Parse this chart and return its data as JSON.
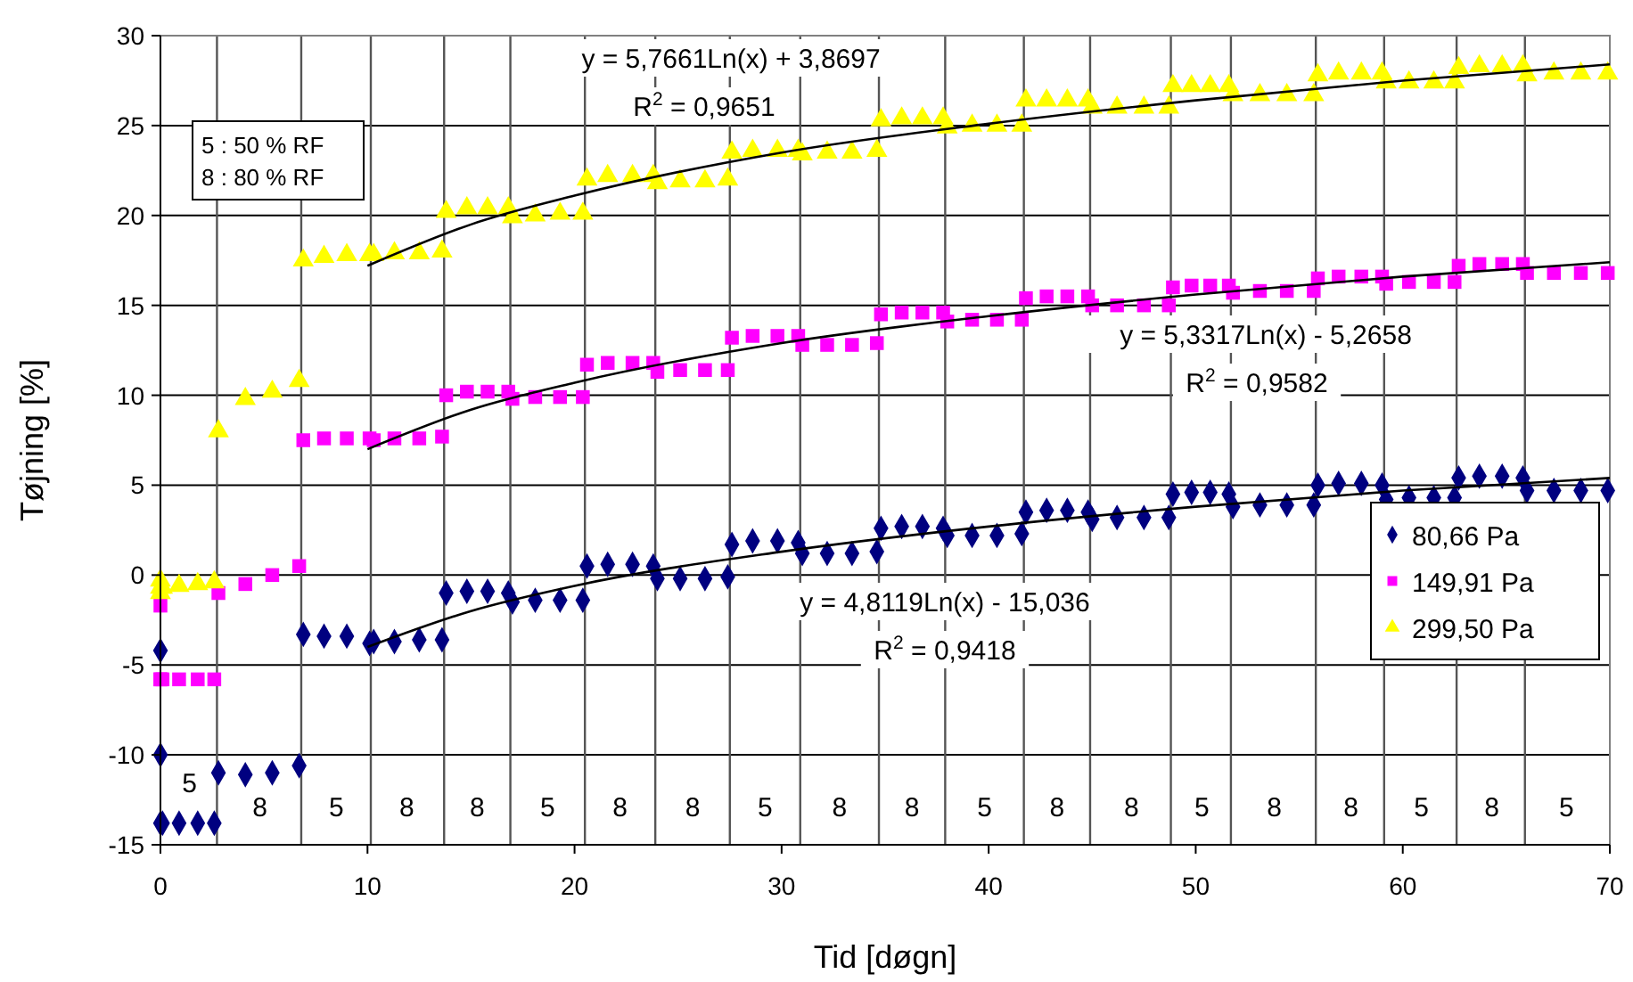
{
  "chart_data": {
    "type": "scatter",
    "xlabel": "Tid [døgn]",
    "ylabel": "Tøjning [%]",
    "xlim": [
      0,
      70
    ],
    "xticks": [
      0,
      10,
      20,
      30,
      40,
      50,
      60,
      70
    ],
    "ylim": [
      -15,
      30
    ],
    "yticks": [
      -15,
      -10,
      -5,
      0,
      5,
      10,
      15,
      20,
      25,
      30
    ],
    "grid": "y",
    "legend": "bottom right",
    "x": [
      0,
      0,
      0,
      0.1,
      0.9,
      1.8,
      2.6,
      2.8,
      4.1,
      5.4,
      6.7,
      6.9,
      7.9,
      9.0,
      10.1,
      10.3,
      11.3,
      12.5,
      13.6,
      13.8,
      14.8,
      15.8,
      16.8,
      17.0,
      18.1,
      19.3,
      20.4,
      20.6,
      21.6,
      22.8,
      23.8,
      24.0,
      25.1,
      26.3,
      27.4,
      27.6,
      28.6,
      29.8,
      30.8,
      31.0,
      32.2,
      33.4,
      34.6,
      34.8,
      35.8,
      36.8,
      37.8,
      38.0,
      39.2,
      40.4,
      41.6,
      41.8,
      42.8,
      43.8,
      44.8,
      45.0,
      46.2,
      47.5,
      48.7,
      48.9,
      49.8,
      50.7,
      51.6,
      51.8,
      53.1,
      54.4,
      55.7,
      55.9,
      56.9,
      58.0,
      59.0,
      59.2,
      60.3,
      61.5,
      62.5,
      62.7,
      63.7,
      64.8,
      65.8,
      66.0,
      67.3,
      68.6,
      69.9
    ],
    "series": [
      {
        "name": "80,66 Pa",
        "color": "#000080",
        "marker": "diamond",
        "values": [
          -10,
          -4.2,
          -13.8,
          -13.8,
          -13.8,
          -13.8,
          -13.8,
          -11.0,
          -11.1,
          -11.0,
          -10.6,
          -3.3,
          -3.4,
          -3.4,
          -3.8,
          -3.7,
          -3.7,
          -3.6,
          -3.6,
          -1.0,
          -0.9,
          -0.9,
          -1.0,
          -1.5,
          -1.4,
          -1.4,
          -1.4,
          0.5,
          0.6,
          0.6,
          0.5,
          -0.2,
          -0.2,
          -0.2,
          -0.1,
          1.7,
          1.9,
          1.9,
          1.8,
          1.2,
          1.2,
          1.2,
          1.3,
          2.6,
          2.7,
          2.7,
          2.6,
          2.2,
          2.2,
          2.2,
          2.3,
          3.5,
          3.6,
          3.6,
          3.5,
          3.1,
          3.2,
          3.2,
          3.2,
          4.5,
          4.6,
          4.6,
          4.5,
          3.8,
          3.9,
          3.9,
          3.9,
          5.0,
          5.1,
          5.1,
          5.0,
          4.2,
          4.3,
          4.3,
          4.3,
          5.4,
          5.5,
          5.5,
          5.4,
          4.7,
          4.7,
          4.7,
          4.7
        ]
      },
      {
        "name": "149,91 Pa",
        "color": "#ff00ff",
        "marker": "square",
        "values": [
          -1.7,
          -5.8,
          -5.8,
          -5.8,
          -5.8,
          -5.8,
          -5.8,
          -1.0,
          -0.5,
          0.0,
          0.5,
          7.5,
          7.6,
          7.6,
          7.6,
          7.5,
          7.6,
          7.6,
          7.7,
          10.0,
          10.2,
          10.2,
          10.2,
          9.8,
          9.9,
          9.9,
          9.9,
          11.7,
          11.8,
          11.8,
          11.8,
          11.3,
          11.4,
          11.4,
          11.4,
          13.2,
          13.3,
          13.3,
          13.3,
          12.8,
          12.8,
          12.8,
          12.9,
          14.5,
          14.6,
          14.6,
          14.6,
          14.1,
          14.2,
          14.2,
          14.2,
          15.4,
          15.5,
          15.5,
          15.5,
          15.0,
          15.0,
          15.0,
          15.0,
          16.0,
          16.1,
          16.1,
          16.1,
          15.7,
          15.8,
          15.8,
          15.8,
          16.5,
          16.6,
          16.6,
          16.6,
          16.2,
          16.3,
          16.3,
          16.3,
          17.2,
          17.3,
          17.3,
          17.3,
          16.8,
          16.8,
          16.8,
          16.8
        ]
      },
      {
        "name": "299,50 Pa",
        "color": "#ffff00",
        "marker": "triangle",
        "values": [
          -0.3,
          -1,
          -0.7,
          -0.7,
          -0.6,
          -0.5,
          -0.4,
          8.0,
          9.8,
          10.2,
          10.8,
          17.5,
          17.7,
          17.8,
          17.8,
          17.8,
          17.9,
          17.9,
          18.0,
          20.2,
          20.4,
          20.4,
          20.4,
          19.9,
          20.0,
          20.1,
          20.1,
          22.0,
          22.2,
          22.2,
          22.2,
          21.8,
          21.9,
          21.9,
          22.0,
          23.5,
          23.6,
          23.6,
          23.6,
          23.4,
          23.5,
          23.5,
          23.6,
          25.3,
          25.4,
          25.4,
          25.4,
          24.9,
          25.0,
          25.0,
          25.0,
          26.4,
          26.4,
          26.4,
          26.4,
          26.0,
          26.0,
          26.0,
          26.0,
          27.2,
          27.2,
          27.2,
          27.2,
          26.7,
          26.7,
          26.7,
          26.7,
          27.8,
          27.9,
          27.9,
          27.9,
          27.4,
          27.4,
          27.4,
          27.4,
          28.2,
          28.3,
          28.3,
          28.3,
          27.8,
          27.9,
          27.9,
          27.9
        ]
      },
      {
        "type": "line",
        "color": "#000000",
        "x": [
          10,
          15,
          20,
          30,
          40,
          50,
          60,
          70
        ],
        "values": [
          -4.0,
          -2.0,
          -0.6,
          1.3,
          2.7,
          3.8,
          4.7,
          5.4
        ]
      },
      {
        "type": "line",
        "color": "#000000",
        "x": [
          10,
          15,
          20,
          30,
          40,
          50,
          60,
          70
        ],
        "values": [
          7.0,
          9.2,
          10.7,
          12.9,
          14.4,
          15.6,
          16.6,
          17.4
        ]
      },
      {
        "type": "line",
        "color": "#000000",
        "x": [
          10,
          15,
          20,
          30,
          40,
          50,
          60,
          70
        ],
        "values": [
          17.2,
          19.5,
          21.1,
          23.5,
          25.1,
          26.4,
          27.5,
          28.4
        ]
      }
    ],
    "ref_lines": [
      {
        "axis": "x",
        "value": 2.73,
        "color": "#555555"
      },
      {
        "axis": "x",
        "value": 6.8,
        "color": "#555555"
      },
      {
        "axis": "x",
        "value": 10.16,
        "color": "#555555"
      },
      {
        "axis": "x",
        "value": 13.7,
        "color": "#555555"
      },
      {
        "axis": "x",
        "value": 16.9,
        "color": "#555555"
      },
      {
        "axis": "x",
        "value": 20.5,
        "color": "#555555"
      },
      {
        "axis": "x",
        "value": 23.9,
        "color": "#555555"
      },
      {
        "axis": "x",
        "value": 27.5,
        "color": "#555555"
      },
      {
        "axis": "x",
        "value": 30.9,
        "color": "#555555"
      },
      {
        "axis": "x",
        "value": 34.7,
        "color": "#555555"
      },
      {
        "axis": "x",
        "value": 37.9,
        "color": "#555555"
      },
      {
        "axis": "x",
        "value": 41.7,
        "color": "#555555"
      },
      {
        "axis": "x",
        "value": 44.9,
        "color": "#555555"
      },
      {
        "axis": "x",
        "value": 48.8,
        "color": "#555555"
      },
      {
        "axis": "x",
        "value": 51.7,
        "color": "#555555"
      },
      {
        "axis": "x",
        "value": 55.8,
        "color": "#555555"
      },
      {
        "axis": "x",
        "value": 59.1,
        "color": "#555555"
      },
      {
        "axis": "x",
        "value": 62.6,
        "color": "#555555"
      },
      {
        "axis": "x",
        "value": 65.9,
        "color": "#555555"
      }
    ],
    "annotations": [
      "5 : 50 % RF",
      "8 : 80 % RF",
      "y = 5,7661Ln(x) + 3,8697",
      "R$^{2}$ = 0,9651",
      "y = 5,3317Ln(x) - 5,2658",
      "R$^{2}$ = 0,9582",
      "y = 4,8119Ln(x) - 15,036",
      "R$^{2}$ = 0,9418",
      {
        "text": "5",
        "x": 1.4,
        "y": -11.6
      },
      {
        "text": "8",
        "x": 4.8,
        "y": -12.9
      },
      {
        "text": "5",
        "x": 8.5,
        "y": -12.9
      },
      {
        "text": "8",
        "x": 11.9,
        "y": -12.9
      },
      {
        "text": "8",
        "x": 15.3,
        "y": -12.9
      },
      {
        "text": "5",
        "x": 18.7,
        "y": -12.9
      },
      {
        "text": "8",
        "x": 22.2,
        "y": -12.9
      },
      {
        "text": "8",
        "x": 25.7,
        "y": -12.9
      },
      {
        "text": "5",
        "x": 29.2,
        "y": -12.9
      },
      {
        "text": "8",
        "x": 32.8,
        "y": -12.9
      },
      {
        "text": "8",
        "x": 36.3,
        "y": -12.9
      },
      {
        "text": "5",
        "x": 39.8,
        "y": -12.9
      },
      {
        "text": "8",
        "x": 43.3,
        "y": -12.9
      },
      {
        "text": "8",
        "x": 46.9,
        "y": -12.9
      },
      {
        "text": "5",
        "x": 50.3,
        "y": -12.9
      },
      {
        "text": "8",
        "x": 53.8,
        "y": -12.9
      },
      {
        "text": "8",
        "x": 57.5,
        "y": -12.9
      },
      {
        "text": "5",
        "x": 60.9,
        "y": -12.9
      },
      {
        "text": "8",
        "x": 64.3,
        "y": -12.9
      },
      {
        "text": "5",
        "x": 67.9,
        "y": -12.9
      }
    ]
  }
}
